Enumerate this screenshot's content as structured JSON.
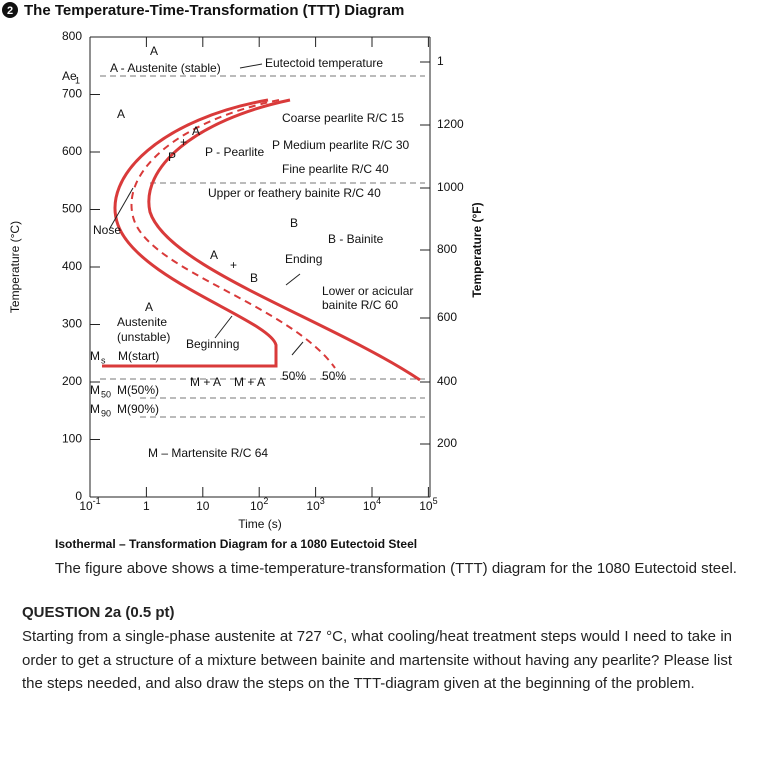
{
  "question_number": "2",
  "title": "The Temperature-Time-Transformation (TTT) Diagram",
  "diagram": {
    "y_axis_label": "Temperature (°C)",
    "y2_axis_label": "Temperature (°F)",
    "x_axis_label": "Time (s)",
    "caption": "Isothermal – Transformation Diagram for a 1080 Eutectoid Steel",
    "yticks": [
      "800",
      "700",
      "600",
      "500",
      "400",
      "300",
      "200",
      "100",
      "0"
    ],
    "y2ticks": [
      "1",
      "1200",
      "1000",
      "800",
      "600",
      "400",
      "200"
    ],
    "xticks": [
      {
        "base": "10",
        "exp": "-1"
      },
      {
        "base": "1"
      },
      {
        "base": "10"
      },
      {
        "base": "10",
        "exp": "2"
      },
      {
        "base": "10",
        "exp": "3"
      },
      {
        "base": "10",
        "exp": "4"
      },
      {
        "base": "10",
        "exp": "5"
      }
    ],
    "labels": [
      "A",
      "A - Austenite (stable)",
      "Eutectoid temperature",
      "Ae",
      "1",
      "A",
      "A",
      "+",
      "P",
      "Coarse pearlite R/C 15",
      "P - Pearlite",
      "P Medium pearlite R/C 30",
      "Fine pearlite R/C 40",
      "Upper or feathery bainite R/C 40",
      "Nose",
      "B",
      "B - Bainite",
      "A",
      "+",
      "B",
      "Ending",
      "Lower or acicular",
      "bainite R/C 60",
      "A",
      "Austenite",
      "(unstable)",
      "Beginning",
      "M",
      "s",
      "M(start)",
      "50%",
      "50%",
      "M",
      "50",
      "M(50%)",
      "M + A",
      "M + A",
      "M",
      "90",
      "M(90%)",
      "M – Martensite R/C 64"
    ]
  },
  "paragraph": "The figure above shows a time-temperature-transformation (TTT) diagram for the 1080 Eutectoid steel.",
  "question": {
    "heading": "QUESTION 2a (0.5 pt)",
    "body": "Starting from a single-phase austenite at 727 °C, what cooling/heat treatment steps would I need to take in order to get a structure of a mixture between bainite and martensite without having any pearlite? Please list the steps needed, and also draw the steps on the TTT-diagram given at the beginning of the problem."
  }
}
